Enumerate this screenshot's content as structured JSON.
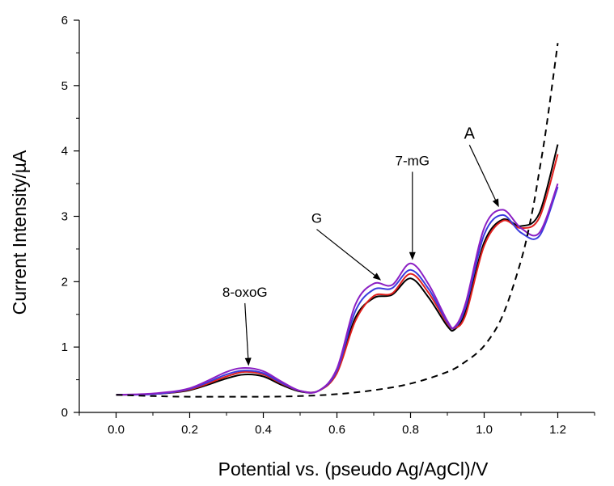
{
  "chart_data": {
    "type": "line",
    "title": "",
    "xlabel": "Potential vs. (pseudo Ag/AgCl)/V",
    "ylabel": "Current Intensity/µA",
    "xlim": [
      -0.1,
      1.3
    ],
    "ylim": [
      0,
      6
    ],
    "xticks": [
      0.0,
      0.2,
      0.4,
      0.6,
      0.8,
      1.0,
      1.2
    ],
    "xtick_labels": [
      "0.0",
      "0.2",
      "0.4",
      "0.6",
      "0.8",
      "1.0",
      "1.2"
    ],
    "yticks": [
      0,
      1,
      2,
      3,
      4,
      5,
      6
    ],
    "ytick_labels": [
      "0",
      "1",
      "2",
      "3",
      "4",
      "5",
      "6"
    ],
    "grid": false,
    "legend": "none",
    "series": [
      {
        "color": "#000000",
        "dash": "solid",
        "x": [
          0.0,
          0.1,
          0.2,
          0.3,
          0.35,
          0.4,
          0.45,
          0.5,
          0.55,
          0.6,
          0.65,
          0.7,
          0.75,
          0.8,
          0.85,
          0.9,
          0.92,
          0.95,
          1.0,
          1.05,
          1.1,
          1.15,
          1.2
        ],
        "y": [
          0.27,
          0.28,
          0.34,
          0.52,
          0.58,
          0.55,
          0.42,
          0.32,
          0.33,
          0.62,
          1.45,
          1.75,
          1.8,
          2.05,
          1.75,
          1.32,
          1.27,
          1.55,
          2.6,
          2.95,
          2.85,
          3.05,
          4.1
        ]
      },
      {
        "color": "#e0201e",
        "dash": "solid",
        "x": [
          0.0,
          0.1,
          0.2,
          0.3,
          0.35,
          0.4,
          0.45,
          0.5,
          0.55,
          0.6,
          0.65,
          0.7,
          0.75,
          0.8,
          0.85,
          0.9,
          0.92,
          0.95,
          1.0,
          1.05,
          1.1,
          1.15,
          1.2
        ],
        "y": [
          0.27,
          0.28,
          0.35,
          0.55,
          0.62,
          0.58,
          0.44,
          0.33,
          0.33,
          0.6,
          1.4,
          1.78,
          1.82,
          2.12,
          1.82,
          1.36,
          1.29,
          1.5,
          2.55,
          2.93,
          2.82,
          2.98,
          3.95
        ]
      },
      {
        "color": "#3b3bdd",
        "dash": "solid",
        "x": [
          0.0,
          0.1,
          0.2,
          0.3,
          0.35,
          0.4,
          0.45,
          0.5,
          0.55,
          0.6,
          0.65,
          0.7,
          0.75,
          0.8,
          0.85,
          0.9,
          0.92,
          0.95,
          1.0,
          1.05,
          1.1,
          1.15,
          1.2
        ],
        "y": [
          0.27,
          0.28,
          0.36,
          0.58,
          0.64,
          0.6,
          0.45,
          0.33,
          0.33,
          0.64,
          1.55,
          1.88,
          1.9,
          2.18,
          1.88,
          1.38,
          1.3,
          1.62,
          2.72,
          3.02,
          2.75,
          2.7,
          3.45
        ]
      },
      {
        "color": "#8b1fc4",
        "dash": "solid",
        "x": [
          0.0,
          0.1,
          0.2,
          0.3,
          0.35,
          0.4,
          0.45,
          0.5,
          0.55,
          0.6,
          0.65,
          0.7,
          0.75,
          0.8,
          0.85,
          0.9,
          0.92,
          0.95,
          1.0,
          1.05,
          1.1,
          1.15,
          1.2
        ],
        "y": [
          0.27,
          0.29,
          0.37,
          0.62,
          0.68,
          0.63,
          0.47,
          0.33,
          0.33,
          0.67,
          1.65,
          1.97,
          1.95,
          2.28,
          1.95,
          1.4,
          1.31,
          1.68,
          2.82,
          3.1,
          2.82,
          2.75,
          3.5
        ]
      },
      {
        "color": "#000000",
        "dash": "dashed",
        "x": [
          0.0,
          0.1,
          0.2,
          0.3,
          0.4,
          0.5,
          0.6,
          0.7,
          0.8,
          0.9,
          0.95,
          1.0,
          1.05,
          1.1,
          1.13,
          1.15,
          1.17,
          1.2
        ],
        "y": [
          0.27,
          0.25,
          0.24,
          0.24,
          0.24,
          0.25,
          0.28,
          0.34,
          0.44,
          0.62,
          0.78,
          1.02,
          1.48,
          2.32,
          3.05,
          3.7,
          4.4,
          5.65
        ]
      }
    ],
    "annotations": [
      {
        "text": "8-oxoG",
        "label_x": 0.35,
        "label_y": 1.77,
        "x": 0.36,
        "y": 0.71
      },
      {
        "text": "G",
        "label_x": 0.545,
        "label_y": 2.9,
        "x": 0.72,
        "y": 2.02
      },
      {
        "text": "7-mG",
        "label_x": 0.805,
        "label_y": 3.78,
        "x": 0.805,
        "y": 2.33
      },
      {
        "text": "A",
        "label_x": 0.96,
        "label_y": 4.19,
        "x": 1.04,
        "y": 3.14
      }
    ]
  }
}
